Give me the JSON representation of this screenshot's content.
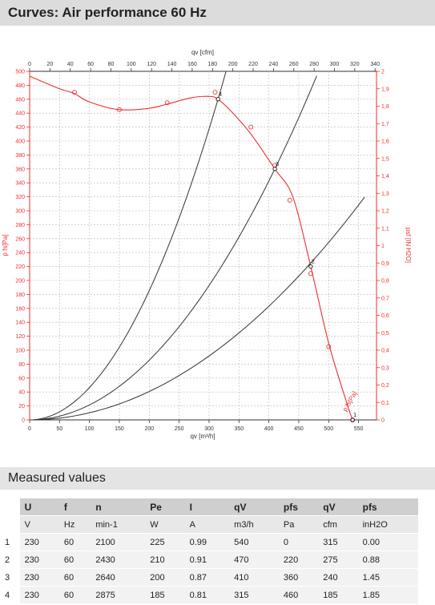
{
  "header": {
    "title": "Curves: Air performance 60 Hz"
  },
  "chart_data": {
    "type": "line",
    "title": "",
    "xlabel": "qv [m³/h]",
    "x2label": "qv [cfm]",
    "ylabel": "p fs[Pa]",
    "y2label": "psf [IN H2O]",
    "xlim": [
      0,
      580
    ],
    "xticks": [
      0,
      50,
      100,
      150,
      200,
      250,
      300,
      350,
      400,
      450,
      500,
      550
    ],
    "x2lim": [
      0,
      341.4
    ],
    "x2ticks": [
      0,
      20,
      40,
      60,
      80,
      100,
      120,
      140,
      160,
      180,
      200,
      220,
      240,
      260,
      280,
      300,
      320,
      340
    ],
    "ylim": [
      0,
      500
    ],
    "yticks": [
      0,
      20,
      40,
      60,
      80,
      100,
      120,
      140,
      160,
      180,
      200,
      220,
      240,
      260,
      280,
      300,
      320,
      340,
      360,
      380,
      400,
      420,
      440,
      460,
      480,
      500
    ],
    "y2lim": [
      0,
      2.0
    ],
    "y2ticks": [
      "0",
      "0,1",
      "0,2",
      "0,3",
      "0,4",
      "0,5",
      "0,6",
      "0,7",
      "0,8",
      "0,9",
      "1",
      "1,1",
      "1,2",
      "1,3",
      "1,4",
      "1,5",
      "1,6",
      "1,7",
      "1,8",
      "1,9",
      "2"
    ],
    "grid": true,
    "series": [
      {
        "name": "p fs[Pa]",
        "color": "#e8312f",
        "x": [
          0,
          50,
          75,
          100,
          150,
          200,
          230,
          270,
          300,
          315,
          340,
          370,
          410,
          440,
          470,
          500,
          530,
          540
        ],
        "y": [
          493,
          475,
          468,
          456,
          445,
          447,
          453,
          462,
          464,
          460,
          440,
          410,
          360,
          320,
          220,
          110,
          25,
          0
        ],
        "markers_x": [
          75,
          150,
          230,
          310,
          370,
          410,
          435,
          470,
          500,
          540
        ],
        "markers_y": [
          470,
          445,
          455,
          470,
          420,
          365,
          315,
          210,
          105,
          0
        ]
      },
      {
        "name": "",
        "color": "#333333",
        "type": "system",
        "x": [
          0,
          315,
          360
        ],
        "y": [
          0,
          460,
          500
        ]
      },
      {
        "name": "",
        "color": "#333333",
        "type": "system",
        "x": [
          0,
          410,
          480
        ],
        "y": [
          0,
          360,
          500
        ]
      },
      {
        "name": "",
        "color": "#333333",
        "type": "system",
        "x": [
          0,
          470,
          560
        ],
        "y": [
          0,
          225,
          315
        ]
      }
    ],
    "operating_points": [
      {
        "label": "4",
        "x": 315,
        "y": 460
      },
      {
        "label": "3",
        "x": 410,
        "y": 360
      },
      {
        "label": "2",
        "x": 470,
        "y": 220
      },
      {
        "label": "1",
        "x": 540,
        "y": 0
      }
    ],
    "curve_label": "p fs[Pa]"
  },
  "measured": {
    "title": "Measured values",
    "headers": [
      "U",
      "f",
      "n",
      "Pe",
      "I",
      "qV",
      "pfs",
      "qV",
      "pfs"
    ],
    "units": [
      "V",
      "Hz",
      "min-1",
      "W",
      "A",
      "m3/h",
      "Pa",
      "cfm",
      "inH2O"
    ],
    "rows": [
      {
        "id": "1",
        "cells": [
          "230",
          "60",
          "2100",
          "225",
          "0.99",
          "540",
          "0",
          "315",
          "0.00"
        ]
      },
      {
        "id": "2",
        "cells": [
          "230",
          "60",
          "2430",
          "210",
          "0.91",
          "470",
          "220",
          "275",
          "0.88"
        ]
      },
      {
        "id": "3",
        "cells": [
          "230",
          "60",
          "2640",
          "200",
          "0.87",
          "410",
          "360",
          "240",
          "1.45"
        ]
      },
      {
        "id": "4",
        "cells": [
          "230",
          "60",
          "2875",
          "185",
          "0.81",
          "315",
          "460",
          "185",
          "1.85"
        ]
      }
    ]
  }
}
